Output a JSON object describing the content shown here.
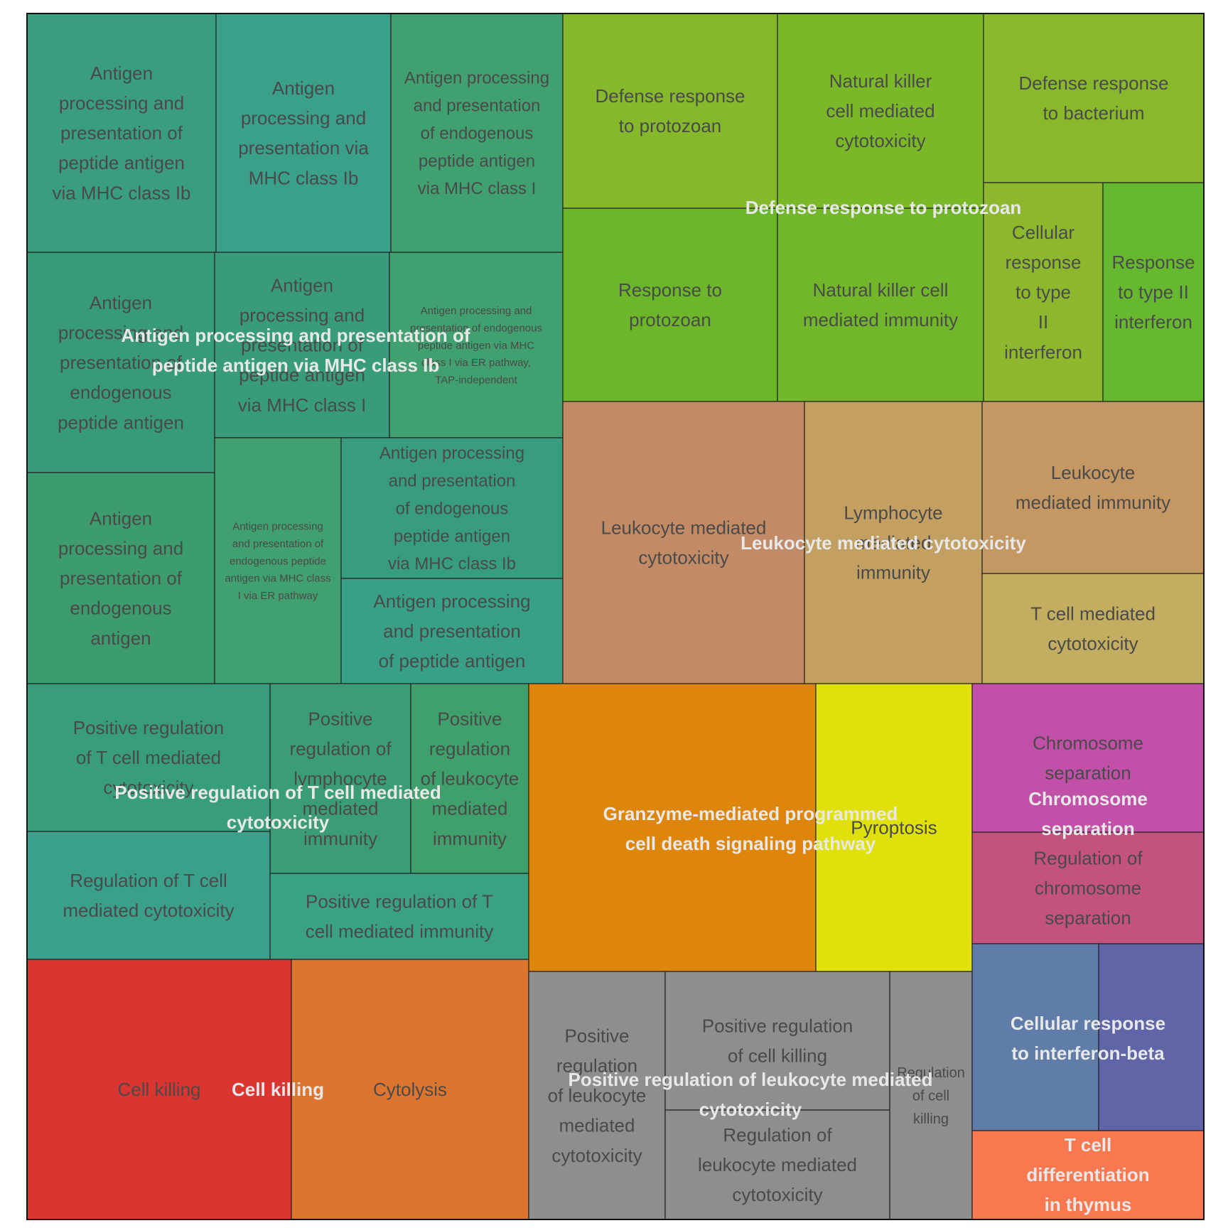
{
  "chart_data": {
    "type": "treemap",
    "groups": [
      {
        "name": "Antigen processing and presentation of peptide antigen via MHC class Ib",
        "color": "#3b9a7a",
        "tiles": [
          {
            "label": "Antigen processing and presentation of peptide antigen via MHC class Ib",
            "color": "#3a9d80"
          },
          {
            "label": "Antigen processing and presentation via MHC class Ib",
            "color": "#3aa08a"
          },
          {
            "label": "Antigen processing and presentation of endogenous peptide antigen via MHC class I",
            "color": "#40a070"
          },
          {
            "label": "Antigen processing and presentation of endogenous peptide antigen",
            "color": "#379b7a"
          },
          {
            "label": "Antigen processing and presentation of peptide antigen via MHC class I",
            "color": "#389c7c"
          },
          {
            "label": "Antigen processing and presentation of endogenous peptide antigen via MHC class I via ER pathway, TAP-independent",
            "color": "#40a070"
          },
          {
            "label": "Antigen processing and presentation of endogenous antigen",
            "color": "#3c9c6e"
          },
          {
            "label": "Antigen processing and presentation of endogenous peptide antigen via MHC class I via ER pathway",
            "color": "#40a070"
          },
          {
            "label": "Antigen processing and presentation of endogenous peptide antigen via MHC class Ib",
            "color": "#379d7e"
          },
          {
            "label": "Antigen processing and presentation of peptide antigen",
            "color": "#38a086"
          }
        ]
      },
      {
        "name": "Defense response to protozoan",
        "color": "#84b72a",
        "tiles": [
          {
            "label": "Defense response to protozoan",
            "color": "#85b82a"
          },
          {
            "label": "Natural killer cell mediated cytotoxicity",
            "color": "#7ab828"
          },
          {
            "label": "Defense response to bacterium",
            "color": "#8ab82c"
          },
          {
            "label": "Response to protozoan",
            "color": "#6cb62a"
          },
          {
            "label": "Natural killer cell mediated immunity",
            "color": "#72b72a"
          },
          {
            "label": "Cellular response to type II interferon",
            "color": "#8db82e"
          },
          {
            "label": "Response to type II interferon",
            "color": "#66b82e"
          }
        ]
      },
      {
        "name": "Leukocyte mediated cytotoxicity",
        "color": "#c38b65",
        "tiles": [
          {
            "label": "Leukocyte mediated cytotoxicity",
            "color": "#c38b65"
          },
          {
            "label": "Lymphocyte mediated immunity",
            "color": "#c3a062"
          },
          {
            "label": "Leukocyte mediated immunity",
            "color": "#c49763"
          },
          {
            "label": "T cell mediated cytotoxicity",
            "color": "#c3ad61"
          }
        ]
      },
      {
        "name": "Positive regulation of T cell mediated cytotoxicity",
        "color": "#3a9d80",
        "tiles": [
          {
            "label": "Positive regulation of T cell mediated cytotoxicity",
            "color": "#389d7d"
          },
          {
            "label": "Positive regulation of lymphocyte mediated immunity",
            "color": "#3b9d75"
          },
          {
            "label": "Positive regulation of leukocyte mediated immunity",
            "color": "#40a06c"
          },
          {
            "label": "Regulation of T cell mediated cytotoxicity",
            "color": "#3aa08a"
          },
          {
            "label": "Positive regulation of T cell mediated immunity",
            "color": "#3ba185"
          }
        ]
      },
      {
        "name": "Granzyme-mediated programmed cell death signaling pathway",
        "color": "#de860b",
        "tiles": [
          {
            "label": "",
            "color": "#de860b"
          },
          {
            "label": "Pyroptosis",
            "color": "#e0e10a"
          }
        ]
      },
      {
        "name": "Chromosome separation",
        "color": "#c150a8",
        "tiles": [
          {
            "label": "Chromosome separation",
            "color": "#c150a8"
          },
          {
            "label": "Regulation of chromosome separation",
            "color": "#c4527f"
          }
        ]
      },
      {
        "name": "Cell killing",
        "color": "#db3431",
        "tiles": [
          {
            "label": "Cell killing",
            "color": "#db3431"
          },
          {
            "label": "Cytolysis",
            "color": "#dd752f"
          }
        ]
      },
      {
        "name": "Positive regulation of leukocyte mediated cytotoxicity",
        "color": "#8e8e8e",
        "tiles": [
          {
            "label": "Positive regulation of leukocyte mediated cytotoxicity",
            "color": "#8e8e8e"
          },
          {
            "label": "Positive regulation of cell killing",
            "color": "#8e8e8e"
          },
          {
            "label": "Regulation of leukocyte mediated cytotoxicity",
            "color": "#8e8e8e"
          },
          {
            "label": "Regulation of cell killing",
            "color": "#8e8e8e"
          }
        ]
      },
      {
        "name": "Cellular response to interferon-beta",
        "color": "#607ca8",
        "tiles": [
          {
            "label": "",
            "color": "#607ca8"
          },
          {
            "label": "",
            "color": "#6065a8"
          }
        ]
      },
      {
        "name": "T cell differentiation in thymus",
        "color": "#f8784f",
        "tiles": [
          {
            "label": "",
            "color": "#f8784f"
          }
        ]
      }
    ]
  }
}
